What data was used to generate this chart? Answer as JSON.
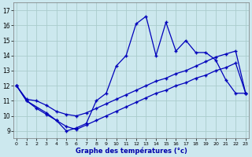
{
  "xlabel": "Graphe des températures (°c)",
  "background_color": "#cce8ee",
  "grid_color": "#aacccc",
  "line_color": "#0000bb",
  "xlim": [
    -0.3,
    23.3
  ],
  "ylim": [
    8.5,
    17.5
  ],
  "xticks": [
    0,
    1,
    2,
    3,
    4,
    5,
    6,
    7,
    8,
    9,
    10,
    11,
    12,
    13,
    14,
    15,
    16,
    17,
    18,
    19,
    20,
    21,
    22,
    23
  ],
  "yticks": [
    9,
    10,
    11,
    12,
    13,
    14,
    15,
    16,
    17
  ],
  "line1_x": [
    0,
    1,
    3,
    4,
    5,
    6,
    7,
    8,
    9,
    10,
    11,
    12,
    13,
    14,
    15,
    16,
    17,
    18,
    19,
    20,
    21,
    22,
    23
  ],
  "line1_y": [
    12,
    11,
    10.2,
    9.7,
    9.0,
    9.2,
    9.5,
    11.0,
    11.5,
    13.3,
    14.0,
    16.1,
    16.6,
    14.0,
    16.2,
    14.3,
    15.0,
    14.2,
    14.2,
    13.7,
    12.4,
    11.5,
    11.5
  ],
  "line2_x": [
    0,
    1,
    2,
    3,
    4,
    5,
    6,
    7,
    8,
    9,
    10,
    11,
    12,
    13,
    14,
    15,
    16,
    17,
    18,
    19,
    20,
    21,
    22,
    23
  ],
  "line2_y": [
    12.0,
    11.1,
    11.0,
    10.7,
    10.3,
    10.1,
    10.0,
    10.2,
    10.5,
    10.8,
    11.1,
    11.4,
    11.7,
    12.0,
    12.3,
    12.5,
    12.8,
    13.0,
    13.3,
    13.6,
    13.9,
    14.1,
    14.3,
    11.5
  ],
  "line3_x": [
    0,
    1,
    2,
    3,
    4,
    5,
    6,
    7,
    8,
    9,
    10,
    11,
    12,
    13,
    14,
    15,
    16,
    17,
    18,
    19,
    20,
    21,
    22,
    23
  ],
  "line3_y": [
    12.0,
    11.0,
    10.5,
    10.1,
    9.7,
    9.3,
    9.1,
    9.4,
    9.7,
    10.0,
    10.3,
    10.6,
    10.9,
    11.2,
    11.5,
    11.7,
    12.0,
    12.2,
    12.5,
    12.7,
    13.0,
    13.2,
    13.5,
    11.5
  ]
}
